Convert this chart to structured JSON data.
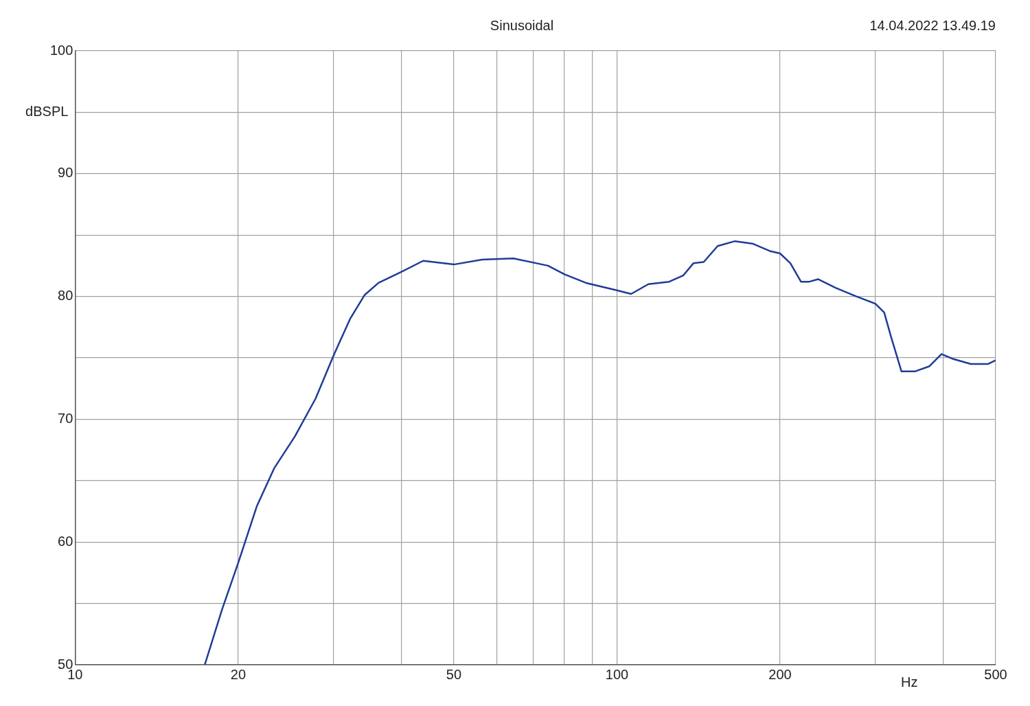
{
  "chart_data": {
    "type": "line",
    "title": "Sinusoidal",
    "xlabel": "Hz",
    "ylabel": "dBSPL",
    "annotations": [
      "14.04.2022 13.49.19"
    ],
    "x": [
      17.35,
      18.67,
      20,
      21.64,
      23.3,
      25.45,
      27.8,
      30,
      32.2,
      34.2,
      36.3,
      40,
      43.9,
      50,
      56.4,
      64.4,
      74.6,
      80,
      87.7,
      100,
      106.2,
      114.3,
      124.9,
      132.5,
      138.4,
      144.6,
      153.4,
      165.2,
      177.8,
      191.4,
      200,
      209,
      218.6,
      226.5,
      235.3,
      253.3,
      276.6,
      300,
      311.3,
      320.6,
      335,
      355.4,
      376.8,
      397.2,
      417.8,
      449.8,
      484.3,
      500
    ],
    "series": [
      {
        "color": "#1f3c96",
        "values": [
          50.0,
          54.5,
          58.3,
          62.9,
          66.0,
          68.6,
          71.7,
          75.2,
          78.2,
          80.1,
          81.1,
          82.0,
          82.9,
          82.6,
          83.0,
          83.1,
          82.5,
          81.8,
          81.1,
          80.5,
          80.2,
          81.0,
          81.2,
          81.7,
          82.7,
          82.8,
          84.1,
          84.5,
          84.3,
          83.7,
          83.5,
          82.7,
          81.2,
          81.2,
          81.4,
          80.7,
          80.0,
          79.4,
          78.7,
          76.7,
          73.9,
          73.9,
          74.3,
          75.3,
          74.9,
          74.5,
          74.5,
          74.8
        ]
      }
    ],
    "log": "x",
    "xlim": [
      10,
      500
    ],
    "xticks": [
      10,
      20,
      {
        "value": 30,
        "label": null
      },
      {
        "value": 40,
        "label": null
      },
      50,
      {
        "value": 60,
        "label": null
      },
      {
        "value": 70,
        "label": null
      },
      {
        "value": 80,
        "label": null
      },
      {
        "value": 90,
        "label": null
      },
      100,
      200,
      {
        "value": 300,
        "label": null
      },
      {
        "value": 400,
        "label": null
      },
      500
    ],
    "ylim": [
      50,
      100
    ],
    "yticks": [
      50,
      {
        "value": 55,
        "label": null
      },
      60,
      {
        "value": 65,
        "label": null
      },
      70,
      {
        "value": 75,
        "label": null
      },
      80,
      {
        "value": 85,
        "label": null
      },
      90,
      {
        "value": 95,
        "label": null
      },
      100
    ],
    "grid": true,
    "legend": false,
    "marker": "none",
    "line_style": "solid"
  }
}
